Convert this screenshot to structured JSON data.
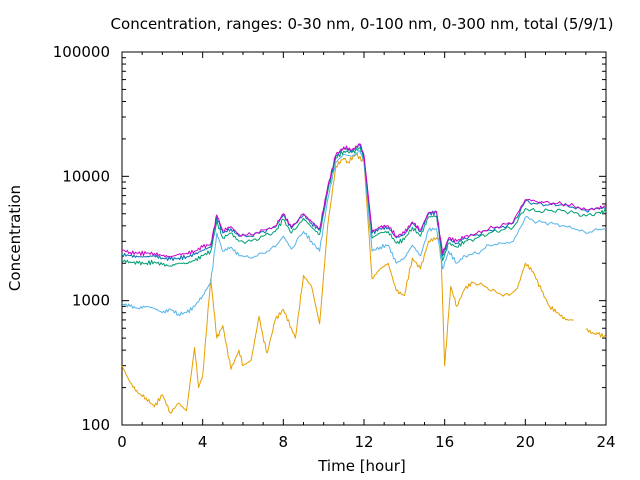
{
  "chart_data": {
    "type": "line",
    "title": "Concentration, ranges: 0-30 nm, 0-100 nm, 0-300 nm, total (5/9/1)",
    "xlabel": "Time [hour]",
    "ylabel": "Concentration",
    "xlim": [
      0,
      24
    ],
    "ylim": [
      100,
      100000
    ],
    "yscale": "log",
    "grid": false,
    "legend": "none",
    "x_ticks": [
      0,
      4,
      8,
      12,
      16,
      20,
      24
    ],
    "x_tick_labels": [
      "0",
      "4",
      "8",
      "12",
      "16",
      "20",
      "24"
    ],
    "y_ticks": [
      100,
      1000,
      10000,
      100000
    ],
    "y_tick_labels": [
      "100",
      "1000",
      "10000",
      "100000"
    ],
    "series": [
      {
        "color": "#e69f00",
        "x": [
          0,
          0.4,
          0.8,
          1.2,
          1.6,
          2.0,
          2.4,
          2.8,
          3.2,
          3.6,
          3.8,
          4.0,
          4.4,
          4.7,
          5.0,
          5.4,
          5.8,
          6.0,
          6.4,
          6.8,
          7.0,
          7.2,
          7.6,
          8.0,
          8.4,
          8.6,
          9.0,
          9.4,
          9.8,
          10.2,
          10.6,
          11.0,
          11.2,
          11.6,
          12.0,
          12.4,
          12.8,
          13.2,
          13.6,
          14.0,
          14.4,
          14.8,
          15.2,
          15.6,
          15.8,
          16.0,
          16.3,
          16.6,
          17.0,
          17.4,
          18.0,
          18.6,
          19.2,
          19.6,
          20.0,
          20.4,
          20.8,
          21.2,
          21.6,
          22.0,
          22.4,
          22.8,
          23.0,
          23.4,
          23.6,
          24.0
        ],
        "y": [
          300,
          220,
          180,
          165,
          140,
          175,
          125,
          150,
          130,
          420,
          200,
          250,
          1500,
          500,
          630,
          280,
          400,
          300,
          330,
          750,
          500,
          380,
          700,
          850,
          600,
          500,
          1600,
          1300,
          650,
          4000,
          12000,
          14000,
          13000,
          15000,
          13000,
          1500,
          1800,
          2000,
          1200,
          1100,
          2200,
          1800,
          3000,
          3200,
          3100,
          300,
          1300,
          900,
          1250,
          1400,
          1300,
          1150,
          1100,
          1250,
          2000,
          1700,
          1200,
          900,
          800,
          700,
          700,
          null,
          590,
          540,
          540,
          510
        ]
      },
      {
        "color": "#56b4e9",
        "x": [
          0,
          0.4,
          0.8,
          1.2,
          1.6,
          2.0,
          2.4,
          2.8,
          3.2,
          3.6,
          4.0,
          4.4,
          4.7,
          5.0,
          5.4,
          5.8,
          6.4,
          7.0,
          7.6,
          8.0,
          8.4,
          9.0,
          9.4,
          9.8,
          10.2,
          10.6,
          11.0,
          11.4,
          11.8,
          12.0,
          12.4,
          12.8,
          13.2,
          13.6,
          14.0,
          14.4,
          14.8,
          15.2,
          15.6,
          15.9,
          16.2,
          16.6,
          17.0,
          17.6,
          18.2,
          18.8,
          19.4,
          20.0,
          20.6,
          21.2,
          21.8,
          22.4,
          23.0,
          23.6,
          24.0
        ],
        "y": [
          950,
          900,
          870,
          900,
          870,
          800,
          850,
          780,
          800,
          900,
          1100,
          1400,
          3500,
          2500,
          2700,
          2300,
          2200,
          2400,
          2700,
          3300,
          2600,
          3600,
          3000,
          2500,
          6500,
          13000,
          15000,
          14500,
          16000,
          13000,
          2500,
          2700,
          2800,
          2000,
          2200,
          2800,
          2300,
          3700,
          3800,
          1800,
          2500,
          2000,
          2300,
          2400,
          2800,
          2900,
          3000,
          4700,
          4300,
          4200,
          4000,
          3800,
          3500,
          3700,
          3800
        ]
      },
      {
        "color": "#009e73",
        "x": [
          0,
          0.4,
          0.8,
          1.2,
          1.6,
          2.0,
          2.4,
          2.8,
          3.2,
          3.6,
          4.0,
          4.4,
          4.7,
          5.0,
          5.4,
          5.8,
          6.4,
          7.0,
          7.6,
          8.0,
          8.4,
          9.0,
          9.4,
          9.8,
          10.2,
          10.6,
          11.0,
          11.4,
          11.8,
          12.0,
          12.4,
          12.8,
          13.2,
          13.6,
          14.0,
          14.4,
          14.8,
          15.2,
          15.6,
          15.9,
          16.2,
          16.6,
          17.0,
          17.6,
          18.2,
          18.8,
          19.4,
          20.0,
          20.6,
          21.2,
          21.8,
          22.4,
          23.0,
          23.6,
          24.0
        ],
        "y": [
          2100,
          2050,
          2000,
          2000,
          2050,
          1950,
          1900,
          2000,
          2000,
          2100,
          2300,
          2500,
          4300,
          3200,
          3500,
          3000,
          3000,
          3300,
          3600,
          4500,
          3500,
          4600,
          3900,
          3400,
          7500,
          14000,
          16000,
          15500,
          17000,
          14000,
          3200,
          3500,
          3600,
          2900,
          3100,
          3900,
          3300,
          4700,
          4800,
          2100,
          2900,
          2700,
          3000,
          3200,
          3500,
          3700,
          3900,
          5500,
          5200,
          5300,
          5300,
          5100,
          4800,
          5100,
          5200
        ]
      },
      {
        "color": "#0072b2",
        "x": [
          0,
          0.4,
          0.8,
          1.2,
          1.6,
          2.0,
          2.4,
          2.8,
          3.2,
          3.6,
          4.0,
          4.4,
          4.7,
          5.0,
          5.4,
          5.8,
          6.4,
          7.0,
          7.6,
          8.0,
          8.4,
          9.0,
          9.4,
          9.8,
          10.2,
          10.6,
          11.0,
          11.4,
          11.8,
          12.0,
          12.4,
          12.8,
          13.2,
          13.6,
          14.0,
          14.4,
          14.8,
          15.2,
          15.6,
          15.9,
          16.2,
          16.6,
          17.0,
          17.6,
          18.2,
          18.8,
          19.4,
          20.0,
          20.6,
          21.2,
          21.8,
          22.4,
          23.0,
          23.6,
          24.0
        ],
        "y": [
          2350,
          2300,
          2250,
          2250,
          2300,
          2200,
          2150,
          2200,
          2250,
          2350,
          2550,
          2700,
          4700,
          3500,
          3800,
          3300,
          3300,
          3600,
          3900,
          4900,
          3800,
          4900,
          4200,
          3700,
          8000,
          14500,
          16800,
          16000,
          17800,
          14500,
          3500,
          3800,
          3900,
          3200,
          3400,
          4200,
          3600,
          5000,
          5100,
          2300,
          3100,
          2900,
          3200,
          3400,
          3700,
          3900,
          4200,
          6300,
          6000,
          5900,
          5900,
          5600,
          5300,
          5500,
          5600
        ]
      },
      {
        "color": "#cc00cc",
        "x": [
          0,
          0.4,
          0.8,
          1.2,
          1.6,
          2.0,
          2.4,
          2.8,
          3.2,
          3.6,
          4.0,
          4.4,
          4.7,
          5.0,
          5.4,
          5.8,
          6.4,
          7.0,
          7.6,
          8.0,
          8.4,
          9.0,
          9.4,
          9.8,
          10.2,
          10.6,
          11.0,
          11.4,
          11.8,
          12.0,
          12.4,
          12.8,
          13.2,
          13.6,
          14.0,
          14.4,
          14.8,
          15.2,
          15.6,
          15.9,
          16.2,
          16.6,
          17.0,
          17.6,
          18.2,
          18.8,
          19.4,
          20.0,
          20.6,
          21.2,
          21.8,
          22.4,
          23.0,
          23.6,
          24.0
        ],
        "y": [
          2550,
          2450,
          2400,
          2400,
          2400,
          2300,
          2250,
          2350,
          2400,
          2500,
          2700,
          2850,
          4900,
          3650,
          3950,
          3400,
          3400,
          3700,
          4000,
          5000,
          3900,
          5000,
          4300,
          3800,
          8200,
          14800,
          17200,
          16300,
          18200,
          14800,
          3600,
          3900,
          4000,
          3300,
          3500,
          4300,
          3700,
          5100,
          5200,
          2400,
          3200,
          3000,
          3300,
          3500,
          3800,
          4000,
          4300,
          6500,
          6200,
          6100,
          6000,
          5800,
          5400,
          5600,
          5700
        ]
      }
    ]
  }
}
